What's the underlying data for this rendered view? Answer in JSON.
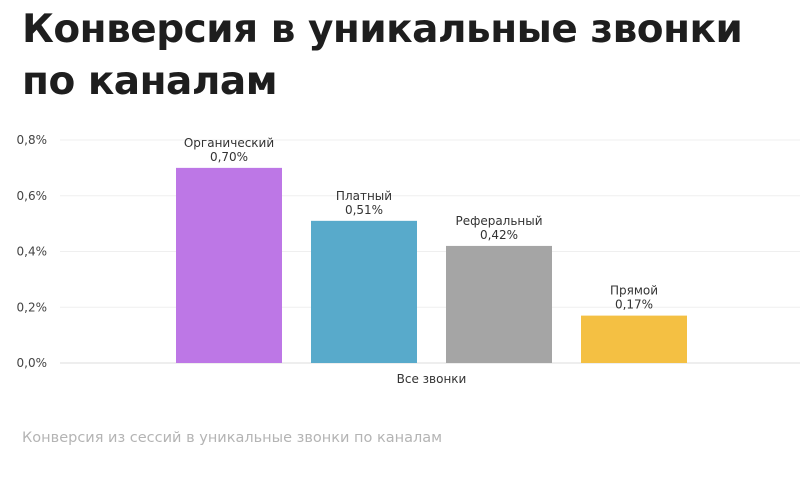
{
  "title_line1": "Конверсия в уникальные звонки",
  "title_line2": "по каналам",
  "caption": "Конверсия из сессий в уникальные звонки по каналам",
  "chart_data": {
    "type": "bar",
    "title": "Конверсия в уникальные звонки по каналам",
    "categories": [
      "Все звонки"
    ],
    "series": [
      {
        "name": "Органический",
        "values": [
          0.7
        ],
        "label": "0,70%",
        "color": "#bd77e6"
      },
      {
        "name": "Платный",
        "values": [
          0.51
        ],
        "label": "0,51%",
        "color": "#58aacb"
      },
      {
        "name": "Реферальный",
        "values": [
          0.42
        ],
        "label": "0,42%",
        "color": "#a5a5a5"
      },
      {
        "name": "Прямой",
        "values": [
          0.17
        ],
        "label": "0,17%",
        "color": "#f4c043"
      }
    ],
    "yticks": [
      "0,0%",
      "0,2%",
      "0,4%",
      "0,6%",
      "0,8%"
    ],
    "yvalues": [
      0,
      0.2,
      0.4,
      0.6,
      0.8
    ],
    "ylim": [
      0,
      0.8
    ],
    "grid": true,
    "xlabel": "",
    "ylabel": ""
  }
}
